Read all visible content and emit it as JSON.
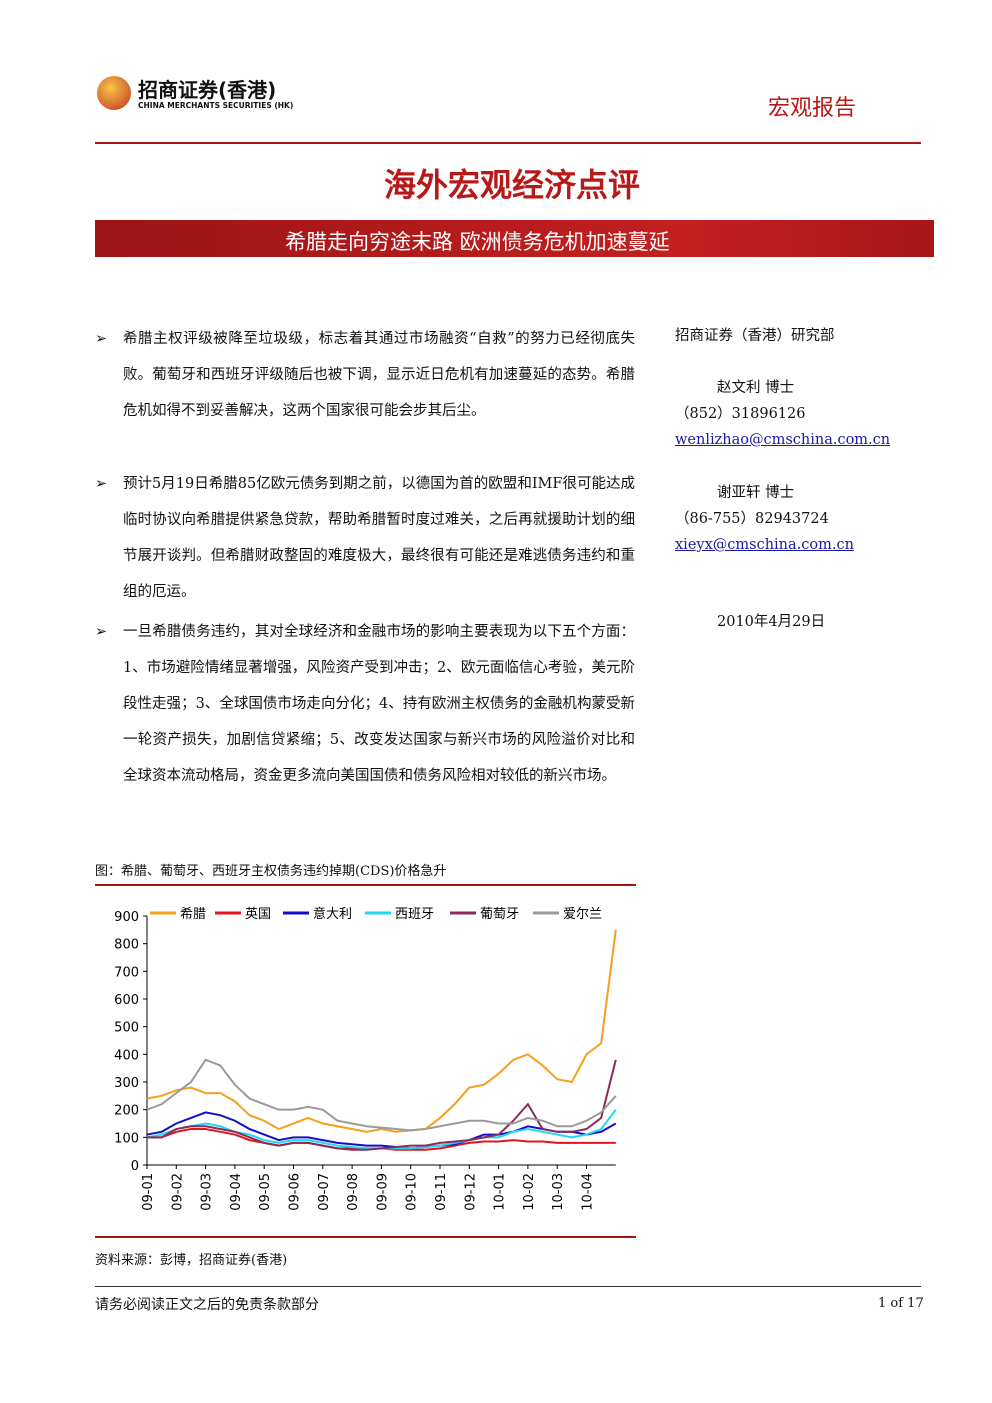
{
  "header": {
    "company": "招商证券(香港)",
    "company_en": "CHINA MERCHANTS SECURITIES (HK)",
    "report_type": "宏观报告"
  },
  "title": "海外宏观经济点评",
  "subtitle": "希腊走向穷途末路 欧洲债务危机加速蔓延",
  "bullets": [
    "希腊主权评级被降至垃圾级，标志着其通过市场融资“自救”的努力已经彻底失败。葡萄牙和西班牙评级随后也被下调，显示近日危机有加速蔓延的态势。希腊危机如得不到妥善解决，这两个国家很可能会步其后尘。",
    "预计5月19日希腊85亿欧元债务到期之前，以德国为首的欧盟和IMF很可能达成临时协议向希腊提供紧急贷款，帮助希腊暂时度过难关，之后再就援助计划的细节展开谈判。但希腊财政整固的难度极大，最终很有可能还是难逃债务违约和重组的厄运。",
    "一旦希腊债务违约，其对全球经济和金融市场的影响主要表现为以下五个方面：1、市场避险情绪显著增强，风险资产受到冲击；2、欧元面临信心考验，美元阶段性走强；3、全球国债市场走向分化；4、持有欧洲主权债务的金融机构蒙受新一轮资产损失，加剧信贷紧缩；5、改变发达国家与新兴市场的风险溢价对比和全球资本流动格局，资金更多流向美国国债和债务风险相对较低的新兴市场。"
  ],
  "sidebar": {
    "dept": "招商证券（香港）研究部",
    "authors": [
      {
        "name": "赵文利 博士",
        "phone": "（852）31896126",
        "email": "wenlizhao@cmschina.com.cn"
      },
      {
        "name": "谢亚轩 博士",
        "phone": "（86-755）82943724",
        "email": "xieyx@cmschina.com.cn"
      }
    ],
    "date": "2010年4月29日"
  },
  "figure": {
    "caption": "图：希腊、葡萄牙、西班牙主权债务违约掉期(CDS)价格急升",
    "source": "资料来源：彭博，招商证券(香港)"
  },
  "chart_data": {
    "type": "line",
    "categories": [
      "09-01",
      null,
      "09-02",
      null,
      "09-03",
      null,
      "09-04",
      null,
      "09-05",
      null,
      "09-06",
      null,
      "09-07",
      null,
      "09-08",
      null,
      "09-09",
      null,
      "09-10",
      null,
      "09-11",
      null,
      "09-12",
      null,
      "10-01",
      null,
      "10-02",
      null,
      "10-03",
      null,
      "10-04",
      null,
      null
    ],
    "ylim": [
      0,
      900
    ],
    "yticks": [
      0,
      100,
      200,
      300,
      400,
      500,
      600,
      700,
      800,
      900
    ],
    "series": [
      {
        "name": "希腊",
        "color": "#f5a01a",
        "values": [
          240,
          250,
          270,
          280,
          260,
          260,
          230,
          180,
          160,
          130,
          150,
          170,
          150,
          140,
          130,
          120,
          130,
          120,
          125,
          130,
          170,
          220,
          280,
          290,
          330,
          380,
          400,
          360,
          310,
          300,
          400,
          440,
          850
        ]
      },
      {
        "name": "英国",
        "color": "#e0151b",
        "values": [
          100,
          100,
          120,
          130,
          130,
          120,
          110,
          90,
          80,
          70,
          80,
          80,
          70,
          60,
          60,
          60,
          60,
          55,
          55,
          55,
          60,
          70,
          80,
          85,
          85,
          90,
          85,
          85,
          80,
          80,
          80,
          80,
          80
        ]
      },
      {
        "name": "意大利",
        "color": "#1010c8",
        "values": [
          110,
          120,
          150,
          170,
          190,
          180,
          160,
          130,
          110,
          90,
          100,
          100,
          90,
          80,
          75,
          70,
          70,
          65,
          60,
          65,
          70,
          75,
          90,
          110,
          110,
          120,
          140,
          130,
          120,
          120,
          110,
          120,
          150
        ]
      },
      {
        "name": "西班牙",
        "color": "#22d8f0",
        "values": [
          100,
          110,
          130,
          140,
          150,
          140,
          120,
          110,
          90,
          80,
          90,
          90,
          80,
          70,
          65,
          60,
          60,
          60,
          60,
          65,
          70,
          80,
          90,
          100,
          100,
          120,
          130,
          120,
          110,
          100,
          110,
          130,
          200
        ]
      },
      {
        "name": "葡萄牙",
        "color": "#8e2a5a",
        "values": [
          100,
          100,
          130,
          140,
          140,
          130,
          120,
          100,
          80,
          70,
          80,
          80,
          70,
          60,
          55,
          55,
          60,
          65,
          70,
          70,
          80,
          85,
          90,
          100,
          110,
          160,
          220,
          130,
          120,
          120,
          130,
          170,
          380
        ]
      },
      {
        "name": "爱尔兰",
        "color": "#9a9a9a",
        "values": [
          200,
          220,
          260,
          300,
          380,
          360,
          290,
          240,
          220,
          200,
          200,
          210,
          200,
          160,
          150,
          140,
          135,
          130,
          125,
          130,
          140,
          150,
          160,
          160,
          150,
          150,
          170,
          160,
          140,
          140,
          160,
          190,
          250
        ]
      }
    ]
  },
  "footer": {
    "disclaimer": "请务必阅读正文之后的免责条款部分",
    "page": "1 of 17"
  }
}
